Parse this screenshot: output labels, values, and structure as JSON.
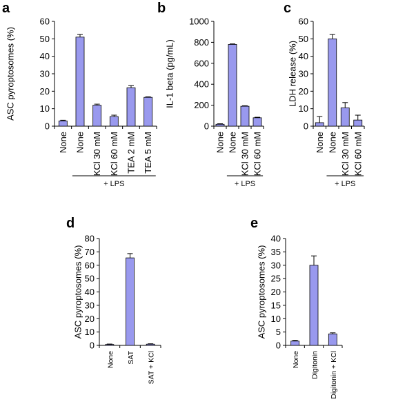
{
  "colors": {
    "bar_fill": "#9999ee",
    "bar_stroke": "#000000",
    "axis": "#000000"
  },
  "chart_data": [
    {
      "panel": "a",
      "type": "bar",
      "ylabel": "ASC pyroptosomes (%)",
      "ylim": [
        0,
        60
      ],
      "yticks": [
        0,
        10,
        20,
        30,
        40,
        50,
        60
      ],
      "categories": [
        "None",
        "None",
        "KCl 30 mM",
        "KCl 60 mM",
        "TEA 2 mM",
        "TEA 5 mM"
      ],
      "values": [
        3,
        51,
        12,
        5.5,
        22,
        16.5
      ],
      "errors": [
        0.4,
        1.5,
        0.6,
        0.8,
        1.2,
        0.3
      ],
      "group_label": "+ LPS",
      "group_start": 1,
      "group_end": 5,
      "grid": false
    },
    {
      "panel": "b",
      "type": "bar",
      "ylabel": "IL-1 beta (pg/mL)",
      "ylim": [
        0,
        1000
      ],
      "yticks": [
        0,
        200,
        400,
        600,
        800,
        1000
      ],
      "categories": [
        "None",
        "None",
        "KCl 30 mM",
        "KCl 60 mM"
      ],
      "values": [
        18,
        780,
        190,
        80
      ],
      "errors": [
        5,
        5,
        5,
        5
      ],
      "group_label": "+ LPS",
      "group_start": 1,
      "group_end": 3,
      "grid": false
    },
    {
      "panel": "c",
      "type": "bar",
      "ylabel": "LDH release (%)",
      "ylim": [
        0,
        60
      ],
      "yticks": [
        0,
        10,
        20,
        30,
        40,
        50,
        60
      ],
      "categories": [
        "None",
        "None",
        "KCl 30 mM",
        "KCl 60 mM"
      ],
      "values": [
        2,
        50,
        10.5,
        3.5
      ],
      "errors": [
        3.5,
        2.5,
        3,
        2.8
      ],
      "group_label": "+ LPS",
      "group_start": 1,
      "group_end": 3,
      "grid": false
    },
    {
      "panel": "d",
      "type": "bar",
      "ylabel": "ASC pyroptosomes (%)",
      "ylim": [
        0,
        80
      ],
      "yticks": [
        0,
        10,
        20,
        30,
        40,
        50,
        60,
        70,
        80
      ],
      "categories": [
        "None",
        "SAT",
        "SAT + KCl"
      ],
      "values": [
        0.7,
        65.5,
        0.9
      ],
      "errors": [
        0.3,
        3.2,
        0.3
      ],
      "grid": false
    },
    {
      "panel": "e",
      "type": "bar",
      "ylabel": "ASC pyroptosomes (%)",
      "ylim": [
        0,
        40
      ],
      "yticks": [
        0,
        5,
        10,
        15,
        20,
        25,
        30,
        35,
        40
      ],
      "categories": [
        "None",
        "Digitonin",
        "Digitonin + KCl"
      ],
      "values": [
        1.6,
        30,
        4.3
      ],
      "errors": [
        0.3,
        3.5,
        0.4
      ],
      "grid": false
    }
  ]
}
